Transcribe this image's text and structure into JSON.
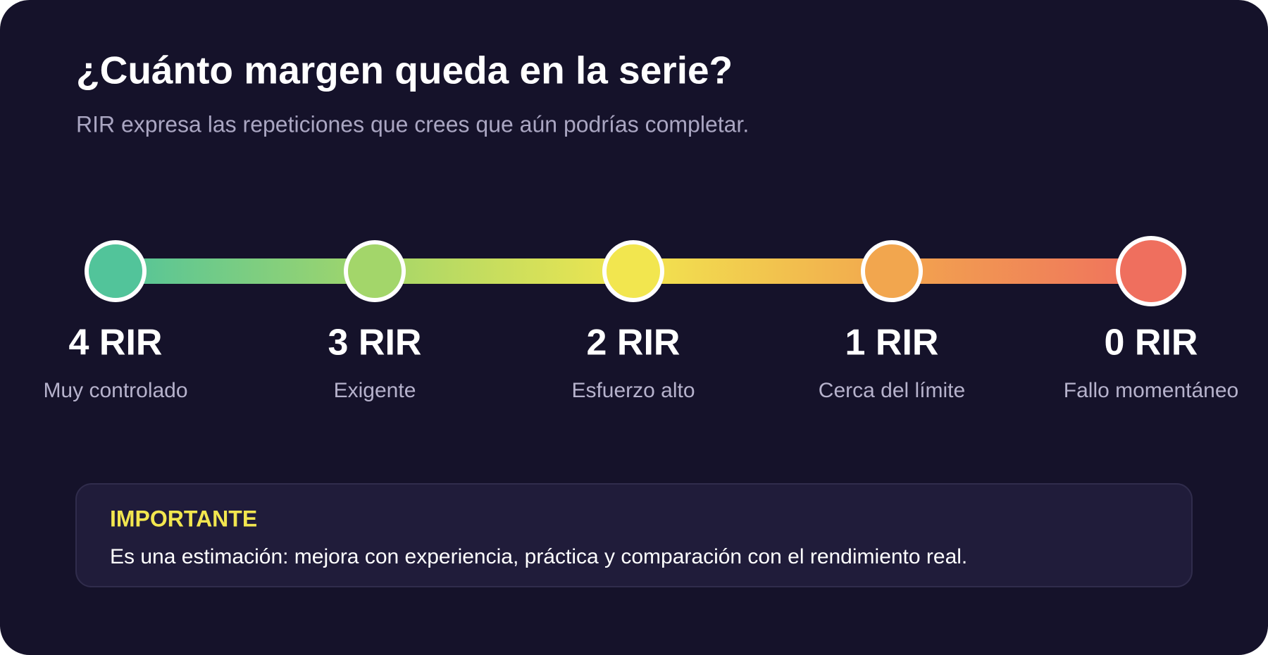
{
  "header": {
    "title": "¿Cuánto margen queda en la serie?",
    "subtitle": "RIR expresa las repeticiones que crees que aún podrías completar."
  },
  "steps": [
    {
      "label": "4 RIR",
      "description": "Muy controlado"
    },
    {
      "label": "3 RIR",
      "description": "Exigente"
    },
    {
      "label": "2 RIR",
      "description": "Esfuerzo alto"
    },
    {
      "label": "1 RIR",
      "description": "Cerca del límite"
    },
    {
      "label": "0 RIR",
      "description": "Fallo momentáneo"
    }
  ],
  "note": {
    "label": "IMPORTANTE",
    "text": "Es una estimación: mejora con experiencia, práctica y comparación con el rendimiento real."
  }
}
